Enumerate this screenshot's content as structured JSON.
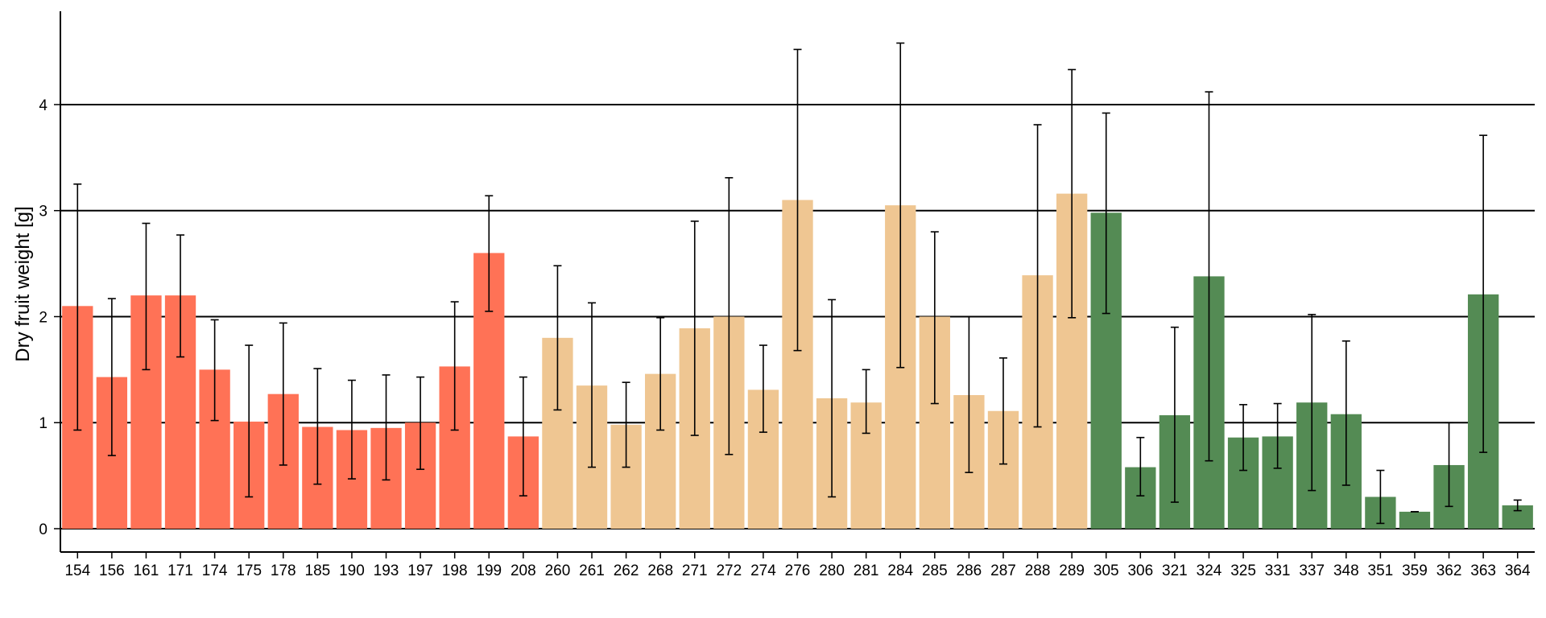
{
  "chart_data": {
    "type": "bar",
    "ylabel": "Dry fruit weight [g]",
    "xlabel": "",
    "ylim": [
      -0.22,
      4.88
    ],
    "yticks": [
      0,
      1,
      2,
      3,
      4
    ],
    "grid": "horizontal",
    "error_bars": true,
    "colors": {
      "group1": "#ff7256",
      "group2": "#efc692",
      "group3": "#548b54"
    },
    "categories": [
      "154",
      "156",
      "161",
      "171",
      "174",
      "175",
      "178",
      "185",
      "190",
      "193",
      "197",
      "198",
      "199",
      "208",
      "260",
      "261",
      "262",
      "268",
      "271",
      "272",
      "274",
      "276",
      "280",
      "281",
      "284",
      "285",
      "286",
      "287",
      "288",
      "289",
      "305",
      "306",
      "321",
      "324",
      "325",
      "331",
      "337",
      "348",
      "351",
      "359",
      "362",
      "363",
      "364"
    ],
    "values": [
      2.1,
      1.43,
      2.2,
      2.2,
      1.5,
      1.01,
      1.27,
      0.96,
      0.93,
      0.95,
      1.0,
      1.53,
      2.6,
      0.87,
      1.8,
      1.35,
      0.98,
      1.46,
      1.89,
      2.0,
      1.31,
      3.1,
      1.23,
      1.19,
      3.05,
      2.0,
      1.26,
      1.11,
      2.39,
      3.16,
      2.98,
      0.58,
      1.07,
      2.38,
      0.86,
      0.87,
      1.19,
      1.08,
      0.3,
      0.16,
      0.6,
      2.21,
      0.22
    ],
    "err_low": [
      0.93,
      0.69,
      1.5,
      1.62,
      1.02,
      0.3,
      0.6,
      0.42,
      0.47,
      0.46,
      0.56,
      0.93,
      2.05,
      0.31,
      1.12,
      0.58,
      0.58,
      0.93,
      0.88,
      0.7,
      0.91,
      1.68,
      0.3,
      0.9,
      1.52,
      1.18,
      0.53,
      0.61,
      0.96,
      1.99,
      2.03,
      0.31,
      0.25,
      0.64,
      0.55,
      0.57,
      0.36,
      0.41,
      0.05,
      0.16,
      0.21,
      0.72,
      0.17
    ],
    "err_high": [
      3.25,
      2.17,
      2.88,
      2.77,
      1.97,
      1.73,
      1.94,
      1.51,
      1.4,
      1.45,
      1.43,
      2.14,
      3.14,
      1.43,
      2.48,
      2.13,
      1.38,
      1.99,
      2.9,
      3.31,
      1.73,
      4.52,
      2.16,
      1.5,
      4.58,
      2.8,
      2.0,
      1.61,
      3.81,
      4.33,
      3.92,
      0.86,
      1.9,
      4.12,
      1.17,
      1.18,
      2.02,
      1.77,
      0.55,
      0.16,
      1.0,
      3.71,
      0.27
    ],
    "groups": [
      1,
      1,
      1,
      1,
      1,
      1,
      1,
      1,
      1,
      1,
      1,
      1,
      1,
      1,
      2,
      2,
      2,
      2,
      2,
      2,
      2,
      2,
      2,
      2,
      2,
      2,
      2,
      2,
      2,
      2,
      3,
      3,
      3,
      3,
      3,
      3,
      3,
      3,
      3,
      3,
      3,
      3,
      3
    ]
  }
}
